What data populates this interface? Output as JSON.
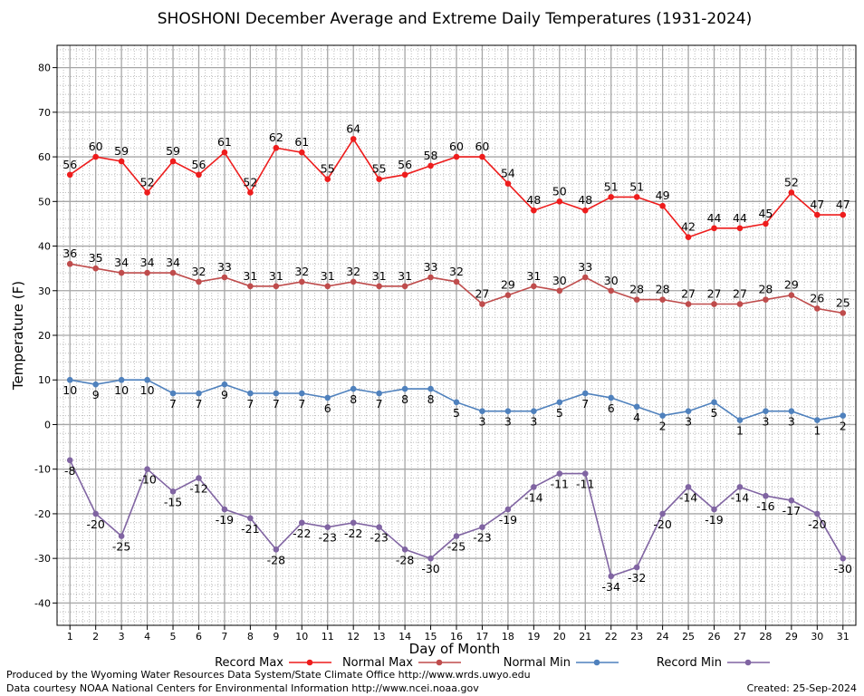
{
  "chart_data": {
    "type": "line",
    "title": "SHOSHONI December Average and Extreme Daily Temperatures (1931-2024)",
    "xlabel": "Day of Month",
    "ylabel": "Temperature (F)",
    "x": [
      1,
      2,
      3,
      4,
      5,
      6,
      7,
      8,
      9,
      10,
      11,
      12,
      13,
      14,
      15,
      16,
      17,
      18,
      19,
      20,
      21,
      22,
      23,
      24,
      25,
      26,
      27,
      28,
      29,
      30,
      31
    ],
    "xlim": [
      0.5,
      31.5
    ],
    "ylim": [
      -45,
      85
    ],
    "yticks": [
      -40,
      -30,
      -20,
      -10,
      0,
      10,
      20,
      30,
      40,
      50,
      60,
      70,
      80
    ],
    "grid": true,
    "series": [
      {
        "name": "Record Max",
        "color": "#ee1c1c",
        "values": [
          56,
          60,
          59,
          52,
          59,
          56,
          61,
          52,
          62,
          61,
          55,
          64,
          55,
          56,
          58,
          60,
          60,
          54,
          48,
          50,
          48,
          51,
          51,
          49,
          42,
          44,
          44,
          45,
          52,
          47,
          47
        ]
      },
      {
        "name": "Normal Max",
        "color": "#bf4c4c",
        "values": [
          36,
          35,
          34,
          34,
          34,
          32,
          33,
          31,
          31,
          32,
          31,
          32,
          31,
          31,
          33,
          32,
          27,
          29,
          31,
          30,
          33,
          30,
          28,
          28,
          27,
          27,
          27,
          28,
          29,
          26,
          25
        ]
      },
      {
        "name": "Normal Min",
        "color": "#4f81bd",
        "values": [
          10,
          9,
          10,
          10,
          7,
          7,
          9,
          7,
          7,
          7,
          6,
          8,
          7,
          8,
          8,
          5,
          3,
          3,
          3,
          5,
          7,
          6,
          4,
          2,
          3,
          5,
          1,
          3,
          3,
          1,
          2
        ]
      },
      {
        "name": "Record Min",
        "color": "#8064a2",
        "values": [
          -8,
          -20,
          -25,
          -10,
          -15,
          -12,
          -19,
          -21,
          -28,
          -22,
          -23,
          -22,
          -23,
          -28,
          -30,
          -25,
          -23,
          -19,
          -14,
          -11,
          -11,
          -34,
          -32,
          -20,
          -14,
          -19,
          -14,
          -16,
          -17,
          -20,
          -30
        ]
      }
    ],
    "legend_position": "bottom"
  },
  "footer": {
    "line1": "Produced by the Wyoming Water Resources Data System/State Climate Office http://www.wrds.uwyo.edu",
    "line2": "Data courtesy NOAA National Centers for Environmental Information http://www.ncei.noaa.gov",
    "created": "Created:  25-Sep-2024"
  }
}
